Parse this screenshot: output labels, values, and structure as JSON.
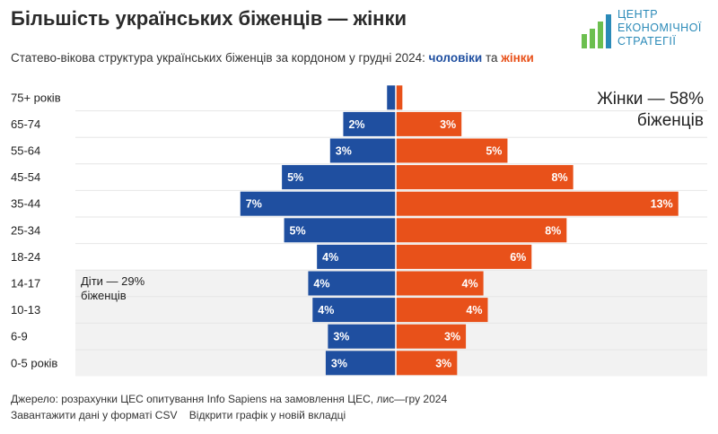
{
  "header": {
    "title": "Більшість українських біженців — жінки",
    "subtitle_prefix": "Статево-вікова структура українських біженців за кордоном у грудні 2024:",
    "subtitle_men": "чоловіки",
    "subtitle_and": "та",
    "subtitle_women": "жінки"
  },
  "logo": {
    "line1": "ЦЕНТР",
    "line2": "ЕКОНОМІЧНОЇ",
    "line3": "СТРАТЕГІЇ"
  },
  "colors": {
    "men": "#1f4fa0",
    "women": "#e8511a",
    "band": "#f2f2f2",
    "logo_green": "#6cbf4f",
    "logo_blue": "#2a8ab8"
  },
  "chart_data": {
    "type": "bar",
    "orientation": "horizontal-butterfly",
    "categories": [
      "75+ років",
      "65-74",
      "55-64",
      "45-54",
      "35-44",
      "25-34",
      "18-24",
      "14-17",
      "10-13",
      "6-9",
      "0-5 років"
    ],
    "series": [
      {
        "name": "чоловіки",
        "values": [
          0.4,
          2.4,
          3.0,
          5.2,
          7.1,
          5.1,
          3.6,
          4.0,
          3.8,
          3.1,
          3.2
        ],
        "labels": [
          "",
          "2%",
          "3%",
          "5%",
          "7%",
          "5%",
          "4%",
          "4%",
          "4%",
          "3%",
          "3%"
        ]
      },
      {
        "name": "жінки",
        "values": [
          0.3,
          3.0,
          5.1,
          8.1,
          12.9,
          7.8,
          6.2,
          4.0,
          4.2,
          3.2,
          2.8
        ],
        "labels": [
          "",
          "3%",
          "5%",
          "8%",
          "13%",
          "8%",
          "6%",
          "4%",
          "4%",
          "3%",
          "3%"
        ]
      }
    ],
    "children_band_categories": [
      "14-17",
      "10-13",
      "6-9",
      "0-5 років"
    ],
    "annotations": {
      "women": "Жінки — 58% біженців",
      "children": "Діти — 29% біженців"
    }
  },
  "footer": {
    "source": "Джерело: розрахунки ЦЕС опитування Info Sapiens на замовлення ЦЕС, лис—гру 2024",
    "download_csv": "Завантажити дані у форматі CSV",
    "open_new_tab": "Відкрити графік у новій вкладці"
  }
}
